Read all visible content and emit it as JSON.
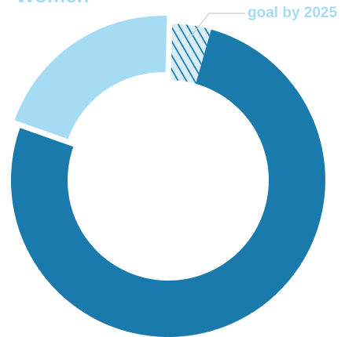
{
  "chart_data": {
    "type": "pie",
    "variant": "donut",
    "title": "Women",
    "segments": [
      {
        "label": "",
        "value": 4,
        "color": "#1a7aac",
        "pattern": "hatch"
      },
      {
        "label": "",
        "value": 76,
        "color": "#1a7aac",
        "pattern": "solid"
      },
      {
        "label": "",
        "value": 20,
        "color": "#a6dcf3",
        "pattern": "solid"
      }
    ],
    "annotation": {
      "text": "goal by 2025",
      "target_segment": 0
    }
  },
  "colors": {
    "dark": "#1a7aac",
    "light": "#a6dcf3",
    "hatch_light": "#d9eef8",
    "label": "#a6dcf3",
    "leader": "#cccccc"
  }
}
